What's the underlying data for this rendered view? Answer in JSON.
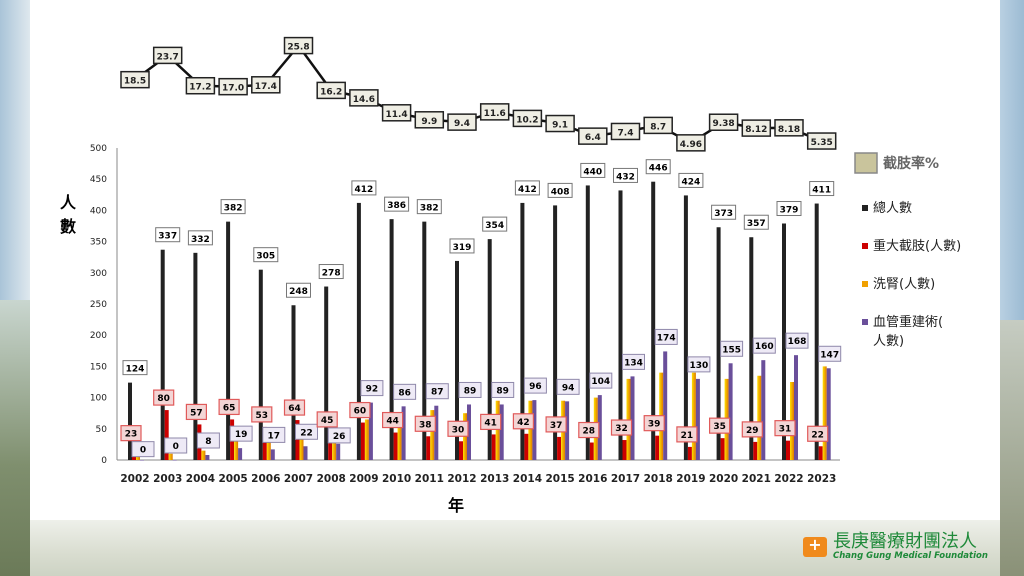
{
  "chart_data": {
    "type": "bar",
    "categories": [
      "2002",
      "2003",
      "2004",
      "2005",
      "2006",
      "2007",
      "2008",
      "2009",
      "2010",
      "2011",
      "2012",
      "2013",
      "2014",
      "2015",
      "2016",
      "2017",
      "2018",
      "2019",
      "2020",
      "2021",
      "2022",
      "2023"
    ],
    "xlabel": "年",
    "ylabel": "人數",
    "ylim": [
      0,
      500
    ],
    "yticks": [
      "0",
      "50",
      "100",
      "150",
      "200",
      "250",
      "300",
      "350",
      "400",
      "450",
      "500"
    ],
    "series": [
      {
        "name": "總人數",
        "color": "#222222",
        "values": [
          124,
          337,
          332,
          382,
          305,
          248,
          278,
          412,
          386,
          382,
          319,
          354,
          412,
          408,
          440,
          432,
          446,
          424,
          373,
          357,
          379,
          411
        ]
      },
      {
        "name": "重大截肢(人數)",
        "color": "#cc0000",
        "values": [
          23,
          80,
          57,
          65,
          53,
          64,
          45,
          60,
          44,
          38,
          30,
          41,
          42,
          37,
          28,
          32,
          39,
          21,
          35,
          29,
          31,
          22
        ]
      },
      {
        "name": "洗腎(人數)",
        "color": "#f0a000",
        "values": [
          5,
          10,
          15,
          45,
          50,
          40,
          40,
          65,
          75,
          80,
          75,
          95,
          95,
          95,
          100,
          130,
          140,
          140,
          130,
          135,
          125,
          150
        ]
      },
      {
        "name": "血管重建術(人數)",
        "color": "#6a4f9a",
        "values": [
          0,
          0,
          8,
          19,
          17,
          22,
          26,
          92,
          86,
          87,
          89,
          89,
          96,
          94,
          104,
          134,
          174,
          130,
          155,
          160,
          168,
          147
        ]
      }
    ],
    "line_series": {
      "name": "截肢率%",
      "values": [
        "18.5",
        "23.7",
        "17.2",
        "17.0",
        "17.4",
        "25.8",
        "16.2",
        "14.6",
        "11.4",
        "9.9",
        "9.4",
        "11.6",
        "10.2",
        "9.1",
        "6.4",
        "7.4",
        "8.7",
        "4.96",
        "9.38",
        "8.12",
        "8.18",
        "5.35"
      ]
    },
    "legend": {
      "position": "right"
    }
  },
  "logo": {
    "name_cn": "長庚醫療財團法人",
    "name_en": "Chang Gung Medical Foundation"
  }
}
